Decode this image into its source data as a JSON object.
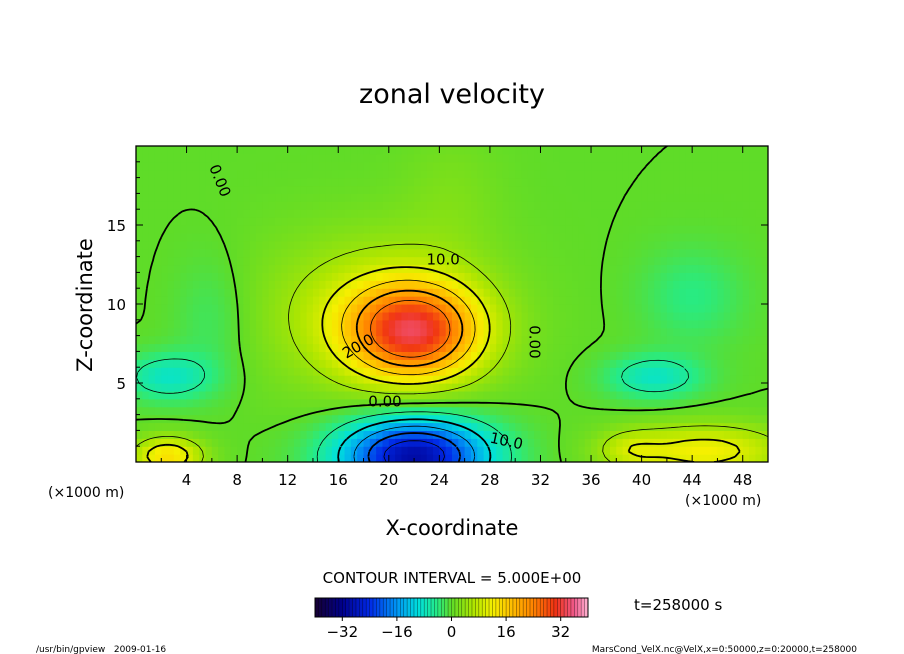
{
  "chart_data": {
    "type": "heatmap",
    "title": "zonal velocity",
    "xlabel": "X-coordinate",
    "ylabel": "Z-coordinate",
    "x_unit": "(×1000 m)",
    "y_unit": "(×1000 m)",
    "xlim": [
      0,
      50
    ],
    "ylim": [
      0,
      20
    ],
    "x_ticks": [
      4,
      8,
      12,
      16,
      20,
      24,
      28,
      32,
      36,
      40,
      44,
      48
    ],
    "y_ticks": [
      5,
      10,
      15
    ],
    "x_tick_labels": [
      "4",
      "8",
      "12",
      "16",
      "20",
      "24",
      "28",
      "32",
      "36",
      "40",
      "44",
      "48"
    ],
    "y_tick_labels": [
      "5",
      "10",
      "15"
    ],
    "contour_interval_text": "CONTOUR INTERVAL = 5.000E+00",
    "contour_labels": [
      {
        "text": "0.00",
        "x": 6.6,
        "z": 17.8,
        "rotate": 68
      },
      {
        "text": "10.0",
        "x": 24.3,
        "z": 12.8,
        "rotate": 0
      },
      {
        "text": "20.0",
        "x": 17.6,
        "z": 7.3,
        "rotate": -30
      },
      {
        "text": "0.00",
        "x": 31.5,
        "z": 7.6,
        "rotate": 90
      },
      {
        "text": "0.00",
        "x": 19.7,
        "z": 3.8,
        "rotate": 0
      },
      {
        "text": "10.0",
        "x": 29.3,
        "z": 1.3,
        "rotate": 12
      }
    ],
    "features": [
      {
        "kind": "jet_max",
        "x": 22,
        "z": 8.3,
        "value": 27
      },
      {
        "kind": "jet_min",
        "x": 22,
        "z": 0.6,
        "value": -30
      },
      {
        "kind": "surface_pos",
        "x": 2.5,
        "z": 0.5,
        "value": 14
      },
      {
        "kind": "surface_pos",
        "x": 45,
        "z": 0.9,
        "value": 12
      },
      {
        "kind": "neg_lobe",
        "x": 2.5,
        "z": 5.5,
        "value": -8
      },
      {
        "kind": "neg_lobe",
        "x": 41,
        "z": 5.4,
        "value": -8
      }
    ],
    "colorbar": {
      "min": -40,
      "max": 40,
      "tick_values": [
        -32,
        -16,
        0,
        16,
        32
      ],
      "tick_labels": [
        "−32",
        "−16",
        "0",
        "16",
        "32"
      ]
    },
    "time_label": "t=258000 s"
  },
  "footer": {
    "left": "/usr/bin/gpview   2009-01-16",
    "right": "MarsCond_VelX.nc@VelX,x=0:50000,z=0:20000,t=258000"
  }
}
